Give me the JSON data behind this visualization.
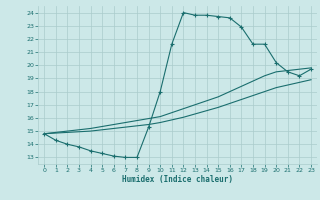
{
  "xlabel": "Humidex (Indice chaleur)",
  "bg_color": "#cce8e8",
  "grid_color": "#aacccc",
  "line_color": "#1a6e6e",
  "xlim": [
    -0.5,
    23.5
  ],
  "ylim": [
    12.5,
    24.5
  ],
  "xticks": [
    0,
    1,
    2,
    3,
    4,
    5,
    6,
    7,
    8,
    9,
    10,
    11,
    12,
    13,
    14,
    15,
    16,
    17,
    18,
    19,
    20,
    21,
    22,
    23
  ],
  "yticks": [
    13,
    14,
    15,
    16,
    17,
    18,
    19,
    20,
    21,
    22,
    23,
    24
  ],
  "line1_x": [
    0,
    1,
    2,
    3,
    4,
    5,
    6,
    7,
    8,
    9,
    10,
    11,
    12,
    13,
    14,
    15,
    16,
    17,
    18,
    19,
    20,
    21,
    22,
    23
  ],
  "line1_y": [
    14.8,
    14.3,
    14.0,
    13.8,
    13.5,
    13.3,
    13.1,
    13.0,
    13.0,
    15.3,
    18.0,
    21.6,
    24.0,
    23.8,
    23.8,
    23.7,
    23.6,
    22.9,
    21.6,
    21.6,
    20.2,
    19.5,
    19.2,
    19.7
  ],
  "line2_x": [
    0,
    1,
    2,
    3,
    4,
    5,
    6,
    7,
    8,
    9,
    10,
    11,
    12,
    13,
    14,
    15,
    16,
    17,
    18,
    19,
    20,
    21,
    22,
    23
  ],
  "line2_y": [
    14.8,
    14.9,
    15.0,
    15.1,
    15.2,
    15.35,
    15.5,
    15.65,
    15.8,
    15.95,
    16.1,
    16.4,
    16.7,
    17.0,
    17.3,
    17.6,
    18.0,
    18.4,
    18.8,
    19.2,
    19.5,
    19.6,
    19.7,
    19.8
  ],
  "line3_x": [
    0,
    1,
    2,
    3,
    4,
    5,
    6,
    7,
    8,
    9,
    10,
    11,
    12,
    13,
    14,
    15,
    16,
    17,
    18,
    19,
    20,
    21,
    22,
    23
  ],
  "line3_y": [
    14.8,
    14.85,
    14.9,
    14.95,
    15.0,
    15.1,
    15.2,
    15.3,
    15.4,
    15.5,
    15.65,
    15.85,
    16.05,
    16.3,
    16.55,
    16.8,
    17.1,
    17.4,
    17.7,
    18.0,
    18.3,
    18.5,
    18.7,
    18.9
  ]
}
